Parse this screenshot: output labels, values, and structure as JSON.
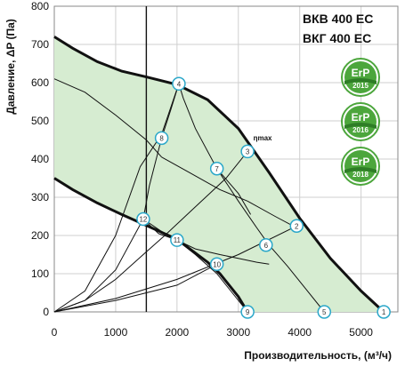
{
  "colors": {
    "region_fill": "#d6ecd1",
    "grid": "#cfcfcf",
    "curve": "#111111",
    "marker_fill": "#ffffff",
    "marker_stroke": "#2aa7c9",
    "badge_green": "#4ca63c"
  },
  "badges": [
    {
      "icon": "erp-badge-icon",
      "top": "ErP",
      "bottom": "2015"
    },
    {
      "icon": "erp-badge-icon",
      "top": "ErP",
      "bottom": "2016"
    },
    {
      "icon": "erp-badge-icon",
      "top": "ErP",
      "bottom": "2018"
    }
  ],
  "chart_data": {
    "type": "line",
    "models": [
      "ВКВ 400 ЕС",
      "ВКГ 400 ЕС"
    ],
    "xlabel": "Производительность, (м³/ч)",
    "ylabel": "Давление, ΔP (Па)",
    "xlim": [
      0,
      5600
    ],
    "ylim": [
      0,
      800
    ],
    "x_ticks": [
      0,
      1000,
      2000,
      3000,
      4000,
      5000
    ],
    "y_ticks": [
      0,
      100,
      200,
      300,
      400,
      500,
      600,
      700,
      800
    ],
    "grid": true,
    "reference_line_x": 1500,
    "annotation": {
      "text": "ηmax",
      "x": 3200,
      "y": 430
    },
    "region": {
      "upper_x": [
        0,
        300,
        700,
        1100,
        1500,
        2000,
        2500,
        3000,
        3500,
        4000,
        4500,
        5000,
        5370
      ],
      "upper_y": [
        720,
        690,
        655,
        630,
        615,
        595,
        555,
        480,
        365,
        245,
        140,
        55,
        0
      ],
      "lower_x": [
        0,
        300,
        700,
        1100,
        1450,
        2000,
        2500,
        2700,
        3000,
        3150
      ],
      "lower_y": [
        350,
        320,
        285,
        255,
        230,
        190,
        130,
        100,
        40,
        0
      ]
    },
    "system_curves": [
      {
        "x": [
          0,
          500,
          1000,
          1400,
          1750,
          2030
        ],
        "y": [
          0,
          55,
          200,
          380,
          465,
          597
        ]
      },
      {
        "x": [
          0,
          500,
          1000,
          1450,
          1800,
          2300,
          2800,
          3150
        ],
        "y": [
          0,
          30,
          85,
          150,
          200,
          275,
          350,
          420
        ]
      },
      {
        "x": [
          0,
          1000,
          2000,
          3000,
          3950
        ],
        "y": [
          0,
          35,
          85,
          150,
          225
        ]
      },
      {
        "x": [
          0,
          500,
          1000,
          1450
        ],
        "y": [
          0,
          30,
          110,
          243
        ]
      },
      {
        "x": [
          0,
          1000,
          2000,
          2650
        ],
        "y": [
          0,
          30,
          70,
          125
        ]
      }
    ],
    "iso_curves": [
      {
        "x": [
          0,
          500,
          1000,
          1500,
          1750
        ],
        "y": [
          610,
          575,
          515,
          450,
          405
        ]
      },
      {
        "x": [
          1750,
          2200,
          2700,
          3150
        ],
        "y": [
          405,
          365,
          320,
          290
        ]
      },
      {
        "x": [
          3150,
          3600,
          3950
        ],
        "y": [
          290,
          250,
          220
        ]
      },
      {
        "x": [
          1450,
          1800,
          2000,
          2300,
          2700
        ],
        "y": [
          243,
          205,
          188,
          165,
          150
        ]
      },
      {
        "x": [
          2700,
          3000,
          3300,
          3500
        ],
        "y": [
          150,
          140,
          130,
          125
        ]
      },
      {
        "x": [
          2030,
          2100,
          2300,
          2650,
          3000,
          3200
        ],
        "y": [
          597,
          560,
          480,
          375,
          310,
          255
        ]
      },
      {
        "x": [
          2650,
          3000,
          3300,
          3500
        ],
        "y": [
          375,
          290,
          220,
          175
        ]
      },
      {
        "x": [
          3500,
          3800,
          4100,
          4400
        ],
        "y": [
          175,
          120,
          60,
          0
        ]
      },
      {
        "x": [
          2030,
          1900,
          1750,
          1550,
          1450
        ],
        "y": [
          597,
          530,
          455,
          330,
          243
        ]
      },
      {
        "x": [
          1450,
          1700,
          2000,
          2300,
          2650,
          2900,
          3150
        ],
        "y": [
          243,
          205,
          188,
          150,
          100,
          50,
          0
        ]
      }
    ],
    "points": [
      {
        "label": "1",
        "x": 5370,
        "y": 0
      },
      {
        "label": "2",
        "x": 3950,
        "y": 225
      },
      {
        "label": "3",
        "x": 3150,
        "y": 420
      },
      {
        "label": "4",
        "x": 2030,
        "y": 597
      },
      {
        "label": "5",
        "x": 4400,
        "y": 0
      },
      {
        "label": "6",
        "x": 3450,
        "y": 175
      },
      {
        "label": "7",
        "x": 2650,
        "y": 375
      },
      {
        "label": "8",
        "x": 1750,
        "y": 455
      },
      {
        "label": "9",
        "x": 3150,
        "y": 0
      },
      {
        "label": "10",
        "x": 2650,
        "y": 125
      },
      {
        "label": "11",
        "x": 2000,
        "y": 188
      },
      {
        "label": "12",
        "x": 1450,
        "y": 243
      }
    ]
  }
}
